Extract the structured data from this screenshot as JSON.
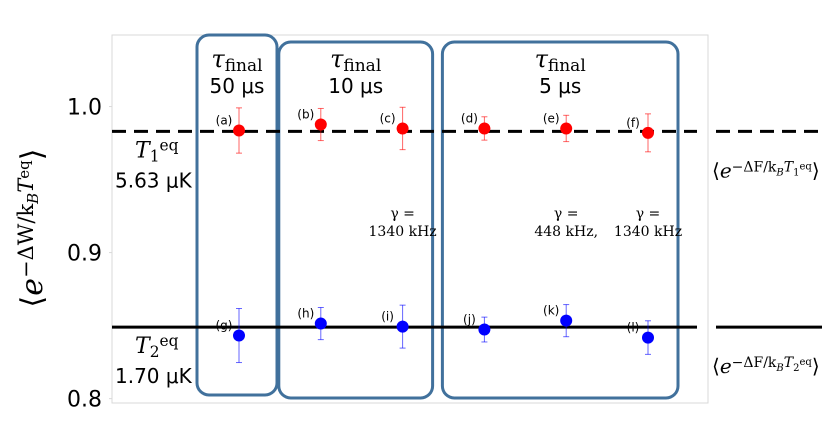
{
  "chart_data": {
    "type": "scatter",
    "ylim": [
      0.797,
      1.049
    ],
    "yticks": [
      {
        "value": 1,
        "label": "1.0"
      },
      0.9,
      0.8
    ],
    "y_label": [
      {
        "t": "⟨",
        "k": "n"
      },
      {
        "t": "e",
        "k": "n"
      },
      {
        "t": "−ΔW/k",
        "k": "sup"
      },
      {
        "t": "B",
        "k": "supsub"
      },
      {
        "t": "T",
        "k": "sup"
      },
      {
        "t": "eq",
        "k": "supsup"
      },
      {
        "t": "⟩",
        "k": "n"
      }
    ],
    "series": [
      {
        "color": "#ff0000",
        "point_labels": [
          "(a)",
          "(b)",
          "(c)",
          "(d)",
          "(e)",
          "(f)"
        ],
        "values": [
          0.9836,
          0.9877,
          0.985,
          0.985,
          0.985,
          0.982
        ],
        "errors": [
          0.0155,
          0.011,
          0.0145,
          0.008,
          0.009,
          0.013
        ]
      },
      {
        "color": "#0000ff",
        "point_labels": [
          "(g)",
          "(h)",
          "(i)",
          "(j)",
          "(k)",
          "(l)"
        ],
        "values": [
          0.8432,
          0.8514,
          0.8493,
          0.8473,
          0.8534,
          0.8418
        ],
        "errors": [
          0.0185,
          0.011,
          0.0147,
          0.0085,
          0.011,
          0.0115
        ]
      }
    ],
    "reference_lines": [
      {
        "value": 0.983,
        "style": "dashed",
        "name": [
          {
            "t": "T",
            "k": "n"
          },
          {
            "t": "1",
            "k": "sub"
          },
          {
            "t": "eq",
            "k": "sup"
          }
        ],
        "temperature": "5.63 μK",
        "expectation": [
          {
            "t": "⟨",
            "k": "n"
          },
          {
            "t": "e",
            "k": "n"
          },
          {
            "t": "−ΔF/k",
            "k": "sup"
          },
          {
            "t": "B",
            "k": "supsub"
          },
          {
            "t": "T",
            "k": "sup"
          },
          {
            "t": "1",
            "k": "supsub"
          },
          {
            "t": "eq",
            "k": "supsup"
          },
          {
            "t": "⟩",
            "k": "n"
          }
        ]
      },
      {
        "value": 0.849,
        "style": "solid",
        "name": [
          {
            "t": "T",
            "k": "n"
          },
          {
            "t": "2",
            "k": "sub"
          },
          {
            "t": "eq",
            "k": "sup"
          }
        ],
        "temperature": "1.70 μK",
        "expectation": [
          {
            "t": "⟨",
            "k": "n"
          },
          {
            "t": "e",
            "k": "n"
          },
          {
            "t": "−ΔF/k",
            "k": "sup"
          },
          {
            "t": "B",
            "k": "supsub"
          },
          {
            "t": "T",
            "k": "sup"
          },
          {
            "t": "2",
            "k": "supsub"
          },
          {
            "t": "eq",
            "k": "supsup"
          },
          {
            "t": "⟩",
            "k": "n"
          }
        ]
      }
    ],
    "groups": [
      {
        "symbol": "τ",
        "subscript": "final",
        "duration": "50 μs"
      },
      {
        "symbol": "τ",
        "subscript": "final",
        "duration": "10 μs"
      },
      {
        "symbol": "τ",
        "subscript": "final",
        "duration": "5 μs"
      }
    ],
    "annotations": [
      {
        "point": "(c)",
        "lines": [
          "γ =",
          "1340 kHz"
        ]
      },
      {
        "point": "(e)",
        "lines": [
          "γ =",
          "448 kHz,"
        ]
      },
      {
        "point": "(f)",
        "lines": [
          "γ =",
          "1340 kHz"
        ]
      }
    ]
  }
}
